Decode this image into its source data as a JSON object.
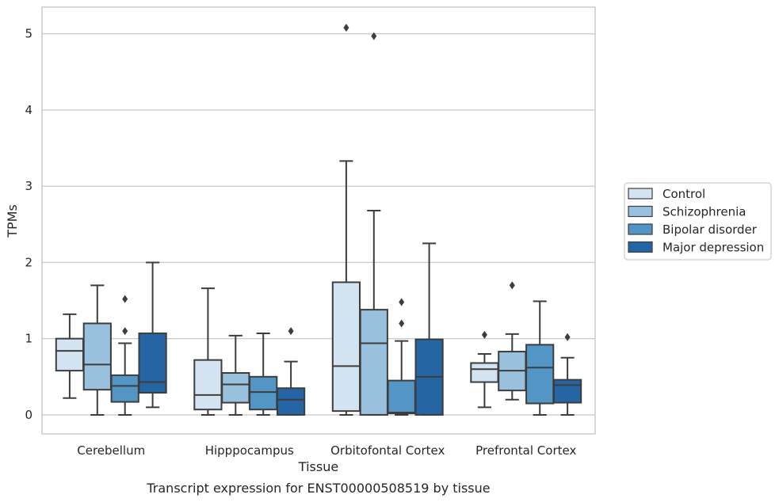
{
  "chart_data": {
    "type": "boxplot",
    "xlabel": "Tissue",
    "ylabel": "TPMs",
    "caption": "Transcript expression for ENST00000508519 by tissue",
    "ylim": [
      -0.25,
      5.35
    ],
    "yticks": [
      0,
      1,
      2,
      3,
      4,
      5
    ],
    "grid": "horizontal",
    "legend_position": "right",
    "categories": [
      "Cerebellum",
      "Hipppocampus",
      "Orbitofontal Cortex",
      "Prefrontal Cortex"
    ],
    "series": [
      {
        "name": "Control",
        "color": "#d4e3f1",
        "boxes": [
          {
            "whislo": 0.22,
            "q1": 0.58,
            "med": 0.84,
            "q3": 1.0,
            "whishi": 1.32,
            "fliers": []
          },
          {
            "whislo": 0.0,
            "q1": 0.07,
            "med": 0.26,
            "q3": 0.72,
            "whishi": 1.66,
            "fliers": []
          },
          {
            "whislo": 0.0,
            "q1": 0.05,
            "med": 0.64,
            "q3": 1.74,
            "whishi": 3.33,
            "fliers": [
              5.08
            ]
          },
          {
            "whislo": 0.1,
            "q1": 0.43,
            "med": 0.6,
            "q3": 0.68,
            "whishi": 0.8,
            "fliers": [
              1.05
            ]
          }
        ]
      },
      {
        "name": "Schizophrenia",
        "color": "#99c0dc",
        "boxes": [
          {
            "whislo": 0.0,
            "q1": 0.33,
            "med": 0.66,
            "q3": 1.2,
            "whishi": 1.7,
            "fliers": []
          },
          {
            "whislo": 0.0,
            "q1": 0.16,
            "med": 0.4,
            "q3": 0.55,
            "whishi": 1.04,
            "fliers": []
          },
          {
            "whislo": 0.0,
            "q1": 0.0,
            "med": 0.94,
            "q3": 1.38,
            "whishi": 2.68,
            "fliers": [
              4.97
            ]
          },
          {
            "whislo": 0.2,
            "q1": 0.32,
            "med": 0.58,
            "q3": 0.83,
            "whishi": 1.06,
            "fliers": [
              1.7
            ]
          }
        ]
      },
      {
        "name": "Bipolar disorder",
        "color": "#5396c6",
        "boxes": [
          {
            "whislo": 0.0,
            "q1": 0.17,
            "med": 0.38,
            "q3": 0.52,
            "whishi": 0.94,
            "fliers": [
              1.1,
              1.52
            ]
          },
          {
            "whislo": 0.0,
            "q1": 0.07,
            "med": 0.3,
            "q3": 0.5,
            "whishi": 1.07,
            "fliers": []
          },
          {
            "whislo": 0.0,
            "q1": 0.02,
            "med": 0.03,
            "q3": 0.45,
            "whishi": 0.97,
            "fliers": [
              1.2,
              1.48
            ]
          },
          {
            "whislo": 0.0,
            "q1": 0.15,
            "med": 0.62,
            "q3": 0.92,
            "whishi": 1.49,
            "fliers": []
          }
        ]
      },
      {
        "name": "Major depression",
        "color": "#2565a3",
        "boxes": [
          {
            "whislo": 0.1,
            "q1": 0.29,
            "med": 0.43,
            "q3": 1.07,
            "whishi": 2.0,
            "fliers": []
          },
          {
            "whislo": 0.0,
            "q1": 0.0,
            "med": 0.2,
            "q3": 0.35,
            "whishi": 0.7,
            "fliers": [
              1.1
            ]
          },
          {
            "whislo": 0.0,
            "q1": 0.0,
            "med": 0.5,
            "q3": 0.99,
            "whishi": 2.25,
            "fliers": []
          },
          {
            "whislo": 0.0,
            "q1": 0.16,
            "med": 0.39,
            "q3": 0.46,
            "whishi": 0.75,
            "fliers": [
              1.02
            ]
          }
        ]
      }
    ]
  }
}
